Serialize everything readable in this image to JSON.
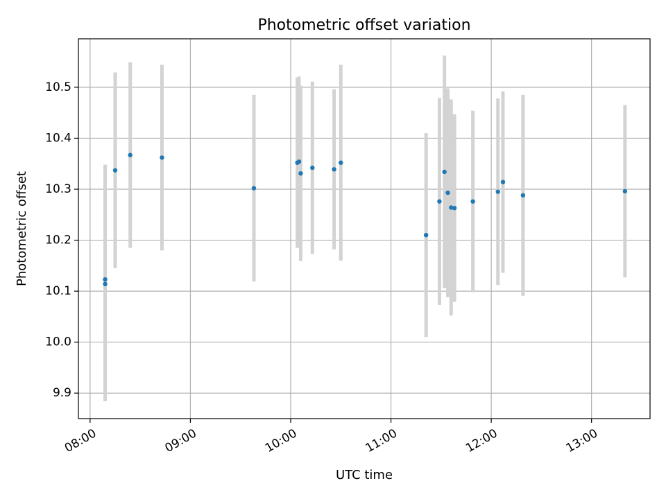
{
  "chart_data": {
    "type": "scatter",
    "title": "Photometric offset variation",
    "xlabel": "UTC time",
    "ylabel": "Photometric offset",
    "grid": true,
    "colors": {
      "point": "#1f77b4",
      "errorbar": "#d3d3d3"
    },
    "x_ticks": [
      "08:00",
      "09:00",
      "10:00",
      "11:00",
      "12:00",
      "13:00"
    ],
    "y_ticks": [
      "9.9",
      "10.0",
      "10.1",
      "10.2",
      "10.3",
      "10.4",
      "10.5"
    ],
    "xlim": [
      "07:53",
      "13:35"
    ],
    "ylim": [
      9.85,
      10.595
    ],
    "points": [
      {
        "x": "08:09",
        "y": 10.114,
        "err": 0.23
      },
      {
        "x": "08:09",
        "y": 10.123,
        "err": 0.225
      },
      {
        "x": "08:15",
        "y": 10.337,
        "err": 0.192
      },
      {
        "x": "08:24",
        "y": 10.367,
        "err": 0.182
      },
      {
        "x": "08:43",
        "y": 10.362,
        "err": 0.182
      },
      {
        "x": "09:38",
        "y": 10.302,
        "err": 0.183
      },
      {
        "x": "10:04",
        "y": 10.352,
        "err": 0.167
      },
      {
        "x": "10:05",
        "y": 10.354,
        "err": 0.167
      },
      {
        "x": "10:06",
        "y": 10.331,
        "err": 0.172
      },
      {
        "x": "10:13",
        "y": 10.342,
        "err": 0.169
      },
      {
        "x": "10:26",
        "y": 10.339,
        "err": 0.157
      },
      {
        "x": "10:30",
        "y": 10.352,
        "err": 0.192
      },
      {
        "x": "11:21",
        "y": 10.21,
        "err": 0.2
      },
      {
        "x": "11:29",
        "y": 10.276,
        "err": 0.203
      },
      {
        "x": "11:32",
        "y": 10.334,
        "err": 0.228
      },
      {
        "x": "11:34",
        "y": 10.293,
        "err": 0.205
      },
      {
        "x": "11:36",
        "y": 10.264,
        "err": 0.212
      },
      {
        "x": "11:38",
        "y": 10.263,
        "err": 0.184
      },
      {
        "x": "11:49",
        "y": 10.276,
        "err": 0.178
      },
      {
        "x": "12:04",
        "y": 10.295,
        "err": 0.183
      },
      {
        "x": "12:07",
        "y": 10.314,
        "err": 0.178
      },
      {
        "x": "12:19",
        "y": 10.288,
        "err": 0.197
      },
      {
        "x": "13:20",
        "y": 10.296,
        "err": 0.169
      }
    ]
  }
}
